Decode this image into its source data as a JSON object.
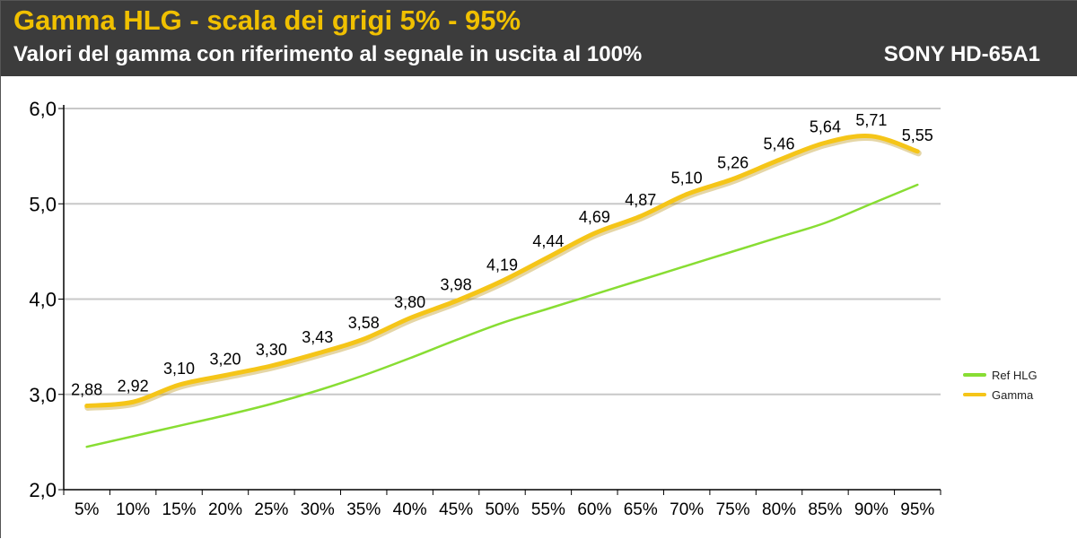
{
  "header": {
    "title": "Gamma HLG - scala dei grigi 5% - 95%",
    "subtitle": "Valori del gamma con riferimento al segnale in uscita al 100%",
    "model": "SONY HD-65A1"
  },
  "colors": {
    "header_bg": "#3c3c3c",
    "title": "#f0c000",
    "gamma_line": "#f5c518",
    "ref_line": "#88dd33",
    "grid": "#c8c8c8"
  },
  "chart_data": {
    "type": "line",
    "categories": [
      "5%",
      "10%",
      "15%",
      "20%",
      "25%",
      "30%",
      "35%",
      "40%",
      "45%",
      "50%",
      "55%",
      "60%",
      "65%",
      "70%",
      "75%",
      "80%",
      "85%",
      "90%",
      "95%"
    ],
    "ylim": [
      2.0,
      6.0
    ],
    "yticks": [
      "2,0",
      "3,0",
      "4,0",
      "5,0",
      "6,0"
    ],
    "ytick_values": [
      2.0,
      3.0,
      4.0,
      5.0,
      6.0
    ],
    "grid": true,
    "legend_position": "right",
    "series": [
      {
        "name": "Ref HLG",
        "color": "#88dd33",
        "values": [
          2.45,
          2.56,
          2.67,
          2.78,
          2.9,
          3.04,
          3.2,
          3.38,
          3.57,
          3.75,
          3.9,
          4.05,
          4.2,
          4.35,
          4.5,
          4.65,
          4.8,
          5.0,
          5.2
        ]
      },
      {
        "name": "Gamma",
        "color": "#f5c518",
        "values": [
          2.88,
          2.92,
          3.1,
          3.2,
          3.3,
          3.43,
          3.58,
          3.8,
          3.98,
          4.19,
          4.44,
          4.69,
          4.87,
          5.1,
          5.26,
          5.46,
          5.64,
          5.71,
          5.55
        ],
        "labels": [
          "2,88",
          "2,92",
          "3,10",
          "3,20",
          "3,30",
          "3,43",
          "3,58",
          "3,80",
          "3,98",
          "4,19",
          "4,44",
          "4,69",
          "4,87",
          "5,10",
          "5,26",
          "5,46",
          "5,64",
          "5,71",
          "5,55"
        ]
      }
    ]
  }
}
